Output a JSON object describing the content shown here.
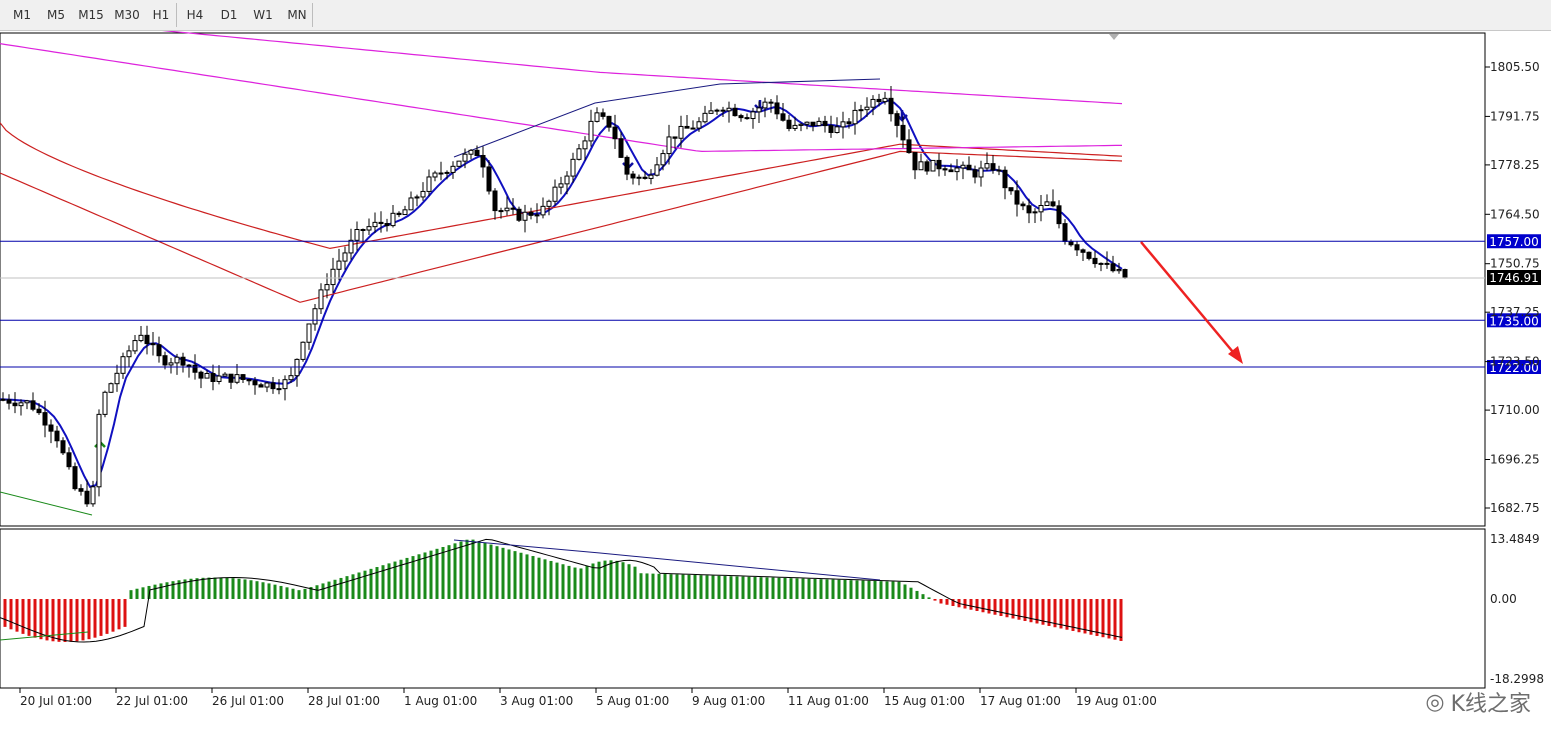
{
  "toolbar": {
    "timeframes": [
      "M1",
      "M5",
      "M15",
      "M30",
      "H1",
      "H4",
      "D1",
      "W1",
      "MN"
    ]
  },
  "price_axis": {
    "labels": [
      "1805.50",
      "1791.75",
      "1778.25",
      "1764.50",
      "1750.75",
      "1737.25",
      "1723.50",
      "1710.00",
      "1696.25",
      "1682.75"
    ],
    "current_price": "1746.91",
    "levels": [
      "1757.00",
      "1735.00",
      "1722.00"
    ]
  },
  "oscillator_axis": {
    "labels": [
      "13.4849",
      "0.00",
      "-18.2998"
    ]
  },
  "time_axis": {
    "labels": [
      "20 Jul 01:00",
      "22 Jul 01:00",
      "26 Jul 01:00",
      "28 Jul 01:00",
      "1 Aug 01:00",
      "3 Aug 01:00",
      "5 Aug 01:00",
      "9 Aug 01:00",
      "11 Aug 01:00",
      "15 Aug 01:00",
      "17 Aug 01:00",
      "19 Aug 01:00"
    ]
  },
  "watermark": {
    "text": "K线之家"
  },
  "colors": {
    "level_line": "#0000aa",
    "level_label_bg": "#0000cc",
    "ma_fast": "#1010c0",
    "ma_red": "#cc2020",
    "ma_magenta": "#dd22dd",
    "osc_up": "#1a8a1a",
    "osc_down": "#dd1111",
    "arrow": "#ee2222"
  }
}
